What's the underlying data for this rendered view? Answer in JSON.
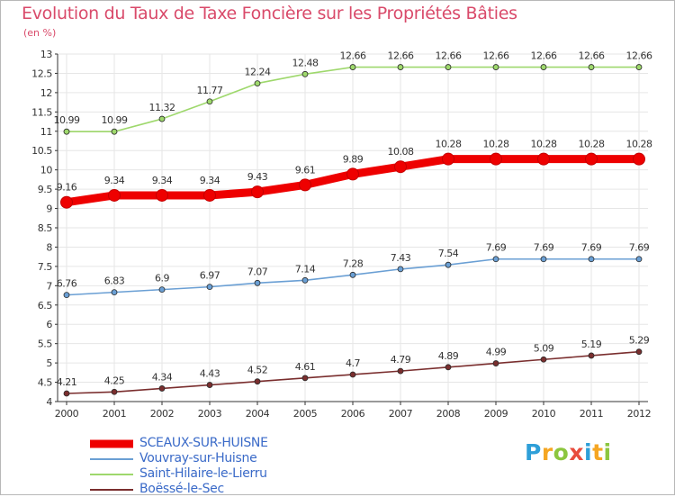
{
  "header": {
    "title": "Evolution du Taux de Taxe Foncière sur les Propriétés Bâties",
    "subtitle": "(en %)"
  },
  "logo": {
    "letters": [
      "P",
      "r",
      "o",
      "x",
      "i",
      "t",
      "i"
    ],
    "colors": [
      "#2e9fd8",
      "#f5a623",
      "#8cc63f",
      "#e84c3d",
      "#2e9fd8",
      "#f5a623",
      "#8cc63f"
    ]
  },
  "chart_data": {
    "type": "line",
    "title": "Evolution du Taux de Taxe Foncière sur les Propriétés Bâties",
    "ylabel": "(en %)",
    "xlabel": "",
    "x": [
      "2000",
      "2001",
      "2002",
      "2003",
      "2004",
      "2005",
      "2006",
      "2007",
      "2008",
      "2009",
      "2010",
      "2011",
      "2012"
    ],
    "ylim": [
      4,
      13
    ],
    "yticks": [
      "4",
      "4.5",
      "5",
      "5.5",
      "6",
      "6.5",
      "7",
      "7.5",
      "8",
      "8.5",
      "9",
      "9.5",
      "10",
      "10.5",
      "11",
      "11.5",
      "12",
      "12.5",
      "13"
    ],
    "grid": true,
    "legend_position": "bottom-left",
    "series": [
      {
        "name": "SCEAUX-SUR-HUISNE",
        "color": "#ee0000",
        "emphasis": true,
        "values": [
          9.16,
          9.34,
          9.34,
          9.34,
          9.43,
          9.61,
          9.89,
          10.08,
          10.28,
          10.28,
          10.28,
          10.28,
          10.28
        ],
        "labels": [
          "9.16",
          "9.34",
          "9.34",
          "9.34",
          "9.43",
          "9.61",
          "9.89",
          "10.08",
          "10.28",
          "10.28",
          "10.28",
          "10.28",
          "10.28"
        ]
      },
      {
        "name": "Vouvray-sur-Huisne",
        "color": "#6a9fd4",
        "emphasis": false,
        "values": [
          6.76,
          6.83,
          6.9,
          6.97,
          7.07,
          7.14,
          7.28,
          7.43,
          7.54,
          7.69,
          7.69,
          7.69,
          7.69
        ],
        "labels": [
          "6.76",
          "6.83",
          "6.9",
          "6.97",
          "7.07",
          "7.14",
          "7.28",
          "7.43",
          "7.54",
          "7.69",
          "7.69",
          "7.69",
          "7.69"
        ]
      },
      {
        "name": "Saint-Hilaire-le-Lierru",
        "color": "#9ed86c",
        "emphasis": false,
        "values": [
          10.99,
          10.99,
          11.32,
          11.77,
          12.24,
          12.48,
          12.66,
          12.66,
          12.66,
          12.66,
          12.66,
          12.66,
          12.66
        ],
        "labels": [
          "10.99",
          "10.99",
          "11.32",
          "11.77",
          "12.24",
          "12.48",
          "12.66",
          "12.66",
          "12.66",
          "12.66",
          "12.66",
          "12.66",
          "12.66"
        ]
      },
      {
        "name": "Boëssé-le-Sec",
        "color": "#7a2e2e",
        "emphasis": false,
        "values": [
          4.21,
          4.25,
          4.34,
          4.43,
          4.52,
          4.61,
          4.7,
          4.79,
          4.89,
          4.99,
          5.09,
          5.19,
          5.29
        ],
        "labels": [
          "4.21",
          "4.25",
          "4.34",
          "4.43",
          "4.52",
          "4.61",
          "4.7",
          "4.79",
          "4.89",
          "4.99",
          "5.09",
          "5.19",
          "5.29"
        ]
      }
    ]
  }
}
